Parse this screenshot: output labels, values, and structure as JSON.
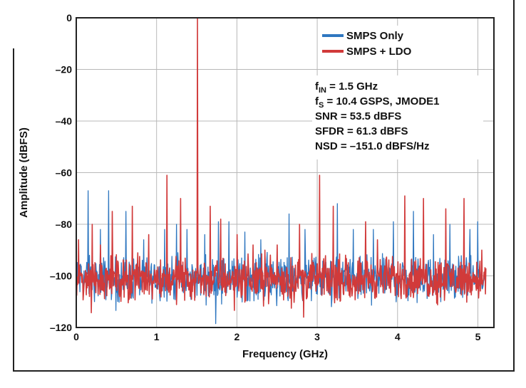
{
  "chart_data": {
    "type": "line",
    "xlabel": "Frequency (GHz)",
    "ylabel": "Amplitude (dBFS)",
    "xlim": [
      0,
      5.2
    ],
    "ylim": [
      -120,
      0
    ],
    "x_ticks": [
      0,
      1,
      2,
      3,
      4,
      5
    ],
    "y_ticks": [
      0,
      -20,
      -40,
      -60,
      -80,
      -100,
      -120
    ],
    "y_tick_labels": [
      "0",
      "–20",
      "–40",
      "–60",
      "–80",
      "–100",
      "–120"
    ],
    "grid": true,
    "legend_position": "top-right",
    "noise_floor_dbfs": -101,
    "colors": {
      "blue": "#2f77c0",
      "red": "#d13a3a"
    },
    "series": [
      {
        "name": "SMPS Only",
        "color": "#2f77c0",
        "spurs": [
          [
            0.15,
            -67
          ],
          [
            0.3,
            -82
          ],
          [
            0.4,
            -67
          ],
          [
            0.62,
            -75
          ],
          [
            0.84,
            -86
          ],
          [
            1.1,
            -82
          ],
          [
            1.25,
            -80
          ],
          [
            1.38,
            -82
          ],
          [
            1.6,
            -84
          ],
          [
            1.77,
            -79
          ],
          [
            1.9,
            -79
          ],
          [
            2.1,
            -83
          ],
          [
            2.3,
            -86
          ],
          [
            2.65,
            -76
          ],
          [
            2.85,
            -82
          ],
          [
            3.25,
            -72
          ],
          [
            3.45,
            -82
          ],
          [
            3.7,
            -82
          ],
          [
            3.95,
            -79
          ],
          [
            4.2,
            -75
          ],
          [
            4.45,
            -84
          ],
          [
            4.65,
            -80
          ],
          [
            4.9,
            -82
          ],
          [
            5.0,
            -79
          ]
        ]
      },
      {
        "name": "SMPS + LDO",
        "color": "#d13a3a",
        "spurs": [
          [
            0.03,
            -86
          ],
          [
            0.2,
            -80
          ],
          [
            0.3,
            -88
          ],
          [
            0.45,
            -75
          ],
          [
            0.7,
            -73
          ],
          [
            0.9,
            -84
          ],
          [
            1.13,
            -61
          ],
          [
            1.3,
            -70
          ],
          [
            1.51,
            0
          ],
          [
            1.67,
            -73
          ],
          [
            1.8,
            -78
          ],
          [
            2.0,
            -84
          ],
          [
            2.2,
            -88
          ],
          [
            2.35,
            -90
          ],
          [
            2.5,
            -88
          ],
          [
            2.78,
            -80
          ],
          [
            3.03,
            -61
          ],
          [
            3.2,
            -73
          ],
          [
            3.6,
            -79
          ],
          [
            3.75,
            -86
          ],
          [
            4.09,
            -69
          ],
          [
            4.32,
            -70
          ],
          [
            4.6,
            -74
          ],
          [
            4.83,
            -70
          ],
          [
            5.05,
            -90
          ]
        ]
      }
    ],
    "annotations": [
      {
        "main": "f",
        "sub": "IN",
        "rest": " = 1.5 GHz"
      },
      {
        "main": "f",
        "sub": "S",
        "rest": " = 10.4 GSPS, JMODE1"
      },
      {
        "main": "SNR = 53.5 dBFS",
        "sub": "",
        "rest": ""
      },
      {
        "main": "SFDR = 61.3 dBFS",
        "sub": "",
        "rest": ""
      },
      {
        "main": "NSD = –151.0 dBFS/Hz",
        "sub": "",
        "rest": ""
      }
    ]
  }
}
